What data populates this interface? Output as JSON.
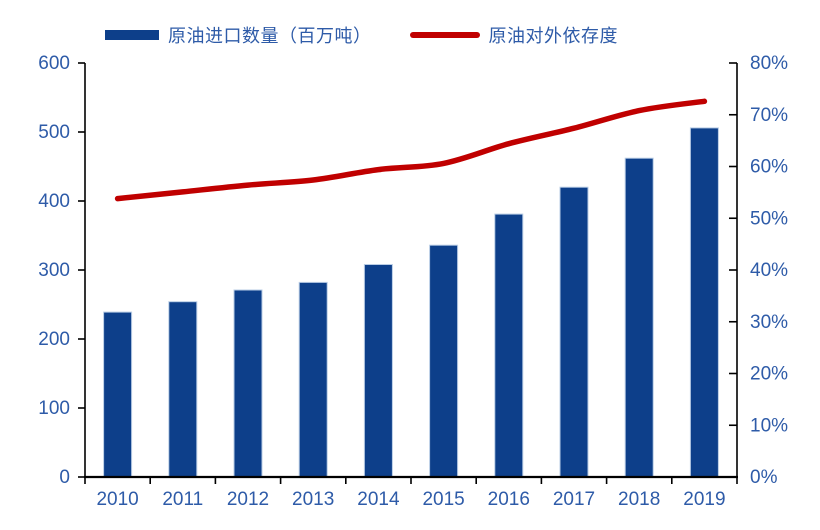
{
  "colors": {
    "bar_fill": "#0d3f8a",
    "bar_border": "#b9cde5",
    "line_stroke": "#c00000",
    "axis_line": "#000000",
    "label_text": "#2e5ba8",
    "background": "#ffffff"
  },
  "legend": {
    "items": [
      {
        "type": "bar",
        "label": "原油进口数量（百万吨）"
      },
      {
        "type": "line",
        "label": "原油对外依存度"
      }
    ]
  },
  "chart_data": {
    "type": "combo",
    "title": "",
    "categories": [
      "2010",
      "2011",
      "2012",
      "2013",
      "2014",
      "2015",
      "2016",
      "2017",
      "2018",
      "2019"
    ],
    "series": [
      {
        "name": "原油进口数量（百万吨）",
        "type": "bar",
        "axis": "left",
        "values": [
          239,
          254,
          271,
          282,
          308,
          336,
          381,
          420,
          462,
          506
        ]
      },
      {
        "name": "原油对外依存度",
        "type": "line",
        "axis": "right",
        "values": [
          53.8,
          55.1,
          56.4,
          57.4,
          59.4,
          60.6,
          64.4,
          67.4,
          70.8,
          72.6
        ]
      }
    ],
    "left_axis": {
      "min": 0,
      "max": 600,
      "step": 100,
      "tick_labels": [
        "0",
        "100",
        "200",
        "300",
        "400",
        "500",
        "600"
      ]
    },
    "right_axis": {
      "min": 0,
      "max": 80,
      "step": 10,
      "tick_labels": [
        "0%",
        "10%",
        "20%",
        "30%",
        "40%",
        "50%",
        "60%",
        "70%",
        "80%"
      ]
    },
    "grid": false,
    "legend_position": "top",
    "line_smoothed": true
  }
}
